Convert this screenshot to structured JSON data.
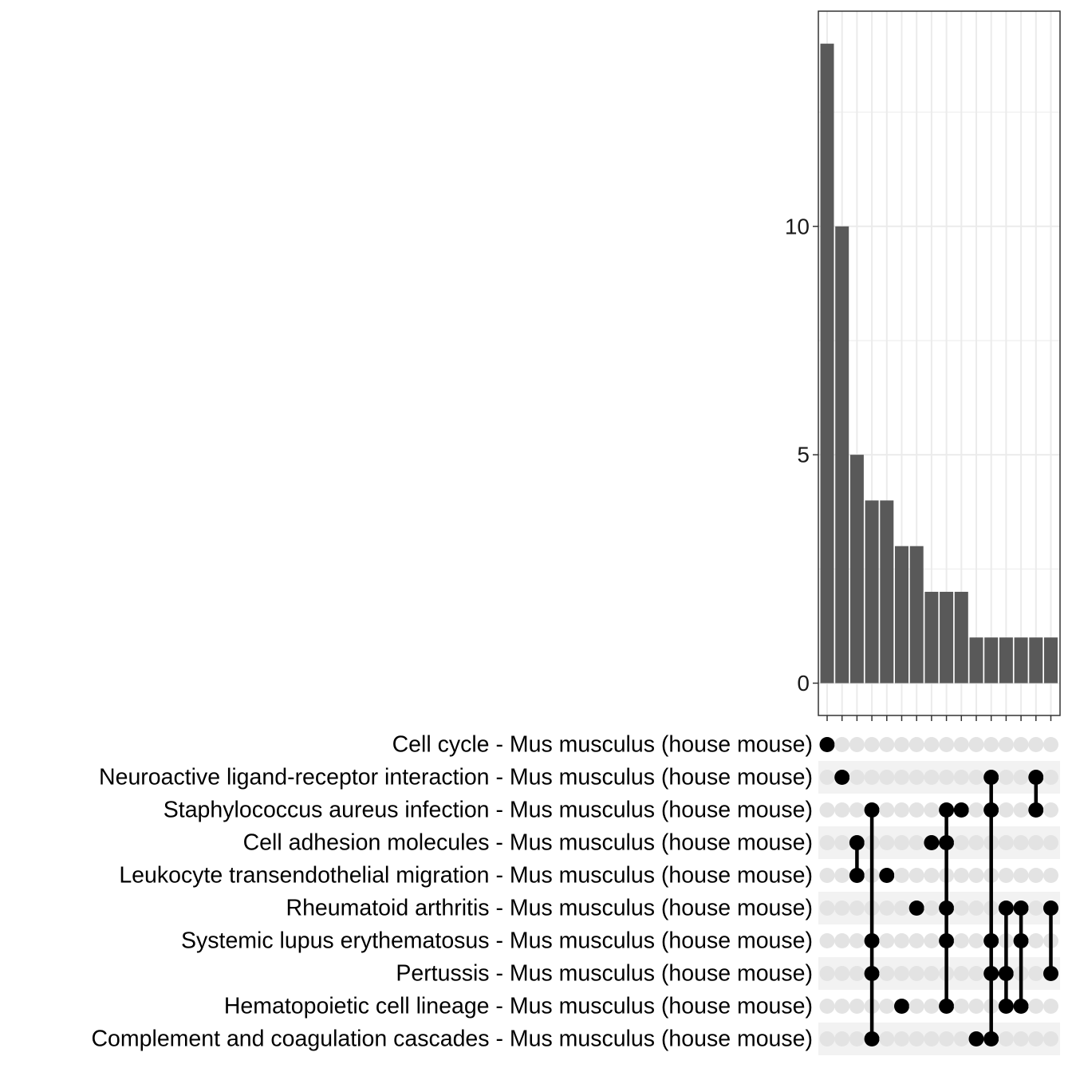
{
  "chart_data": {
    "type": "upset",
    "title": "",
    "xlabel": "",
    "ylabel": "",
    "ylim": [
      0,
      14.7
    ],
    "y_ticks": [
      0,
      5,
      10
    ],
    "grid": true,
    "sets": [
      "Cell cycle - Mus musculus (house mouse)",
      "Neuroactive ligand-receptor interaction - Mus musculus (house mouse)",
      "Staphylococcus aureus infection - Mus musculus (house mouse)",
      "Cell adhesion molecules - Mus musculus (house mouse)",
      "Leukocyte transendothelial migration - Mus musculus (house mouse)",
      "Rheumatoid arthritis - Mus musculus (house mouse)",
      "Systemic lupus erythematosus - Mus musculus (house mouse)",
      "Pertussis - Mus musculus (house mouse)",
      "Hematopoietic cell lineage - Mus musculus (house mouse)",
      "Complement and coagulation cascades - Mus musculus (house mouse)"
    ],
    "intersections": [
      {
        "sets": [
          0
        ],
        "count": 14
      },
      {
        "sets": [
          1
        ],
        "count": 10
      },
      {
        "sets": [
          3,
          4
        ],
        "count": 5
      },
      {
        "sets": [
          2,
          6,
          7,
          9
        ],
        "count": 4
      },
      {
        "sets": [
          4
        ],
        "count": 4
      },
      {
        "sets": [
          8
        ],
        "count": 3
      },
      {
        "sets": [
          5
        ],
        "count": 3
      },
      {
        "sets": [
          3
        ],
        "count": 2
      },
      {
        "sets": [
          2,
          3,
          5,
          6,
          8
        ],
        "count": 2
      },
      {
        "sets": [
          2
        ],
        "count": 2
      },
      {
        "sets": [
          9
        ],
        "count": 1
      },
      {
        "sets": [
          1,
          2,
          6,
          7,
          9
        ],
        "count": 1
      },
      {
        "sets": [
          5,
          7,
          8
        ],
        "count": 1
      },
      {
        "sets": [
          5,
          6,
          8
        ],
        "count": 1
      },
      {
        "sets": [
          1,
          2
        ],
        "count": 1
      },
      {
        "sets": [
          5,
          7
        ],
        "count": 1
      }
    ],
    "colors": {
      "bar": "#595959",
      "dot_active": "#000000",
      "dot_inactive": "#e3e3e3",
      "stripe": "#f2f2f2",
      "grid": "#ebebeb",
      "axis": "#333333"
    }
  }
}
